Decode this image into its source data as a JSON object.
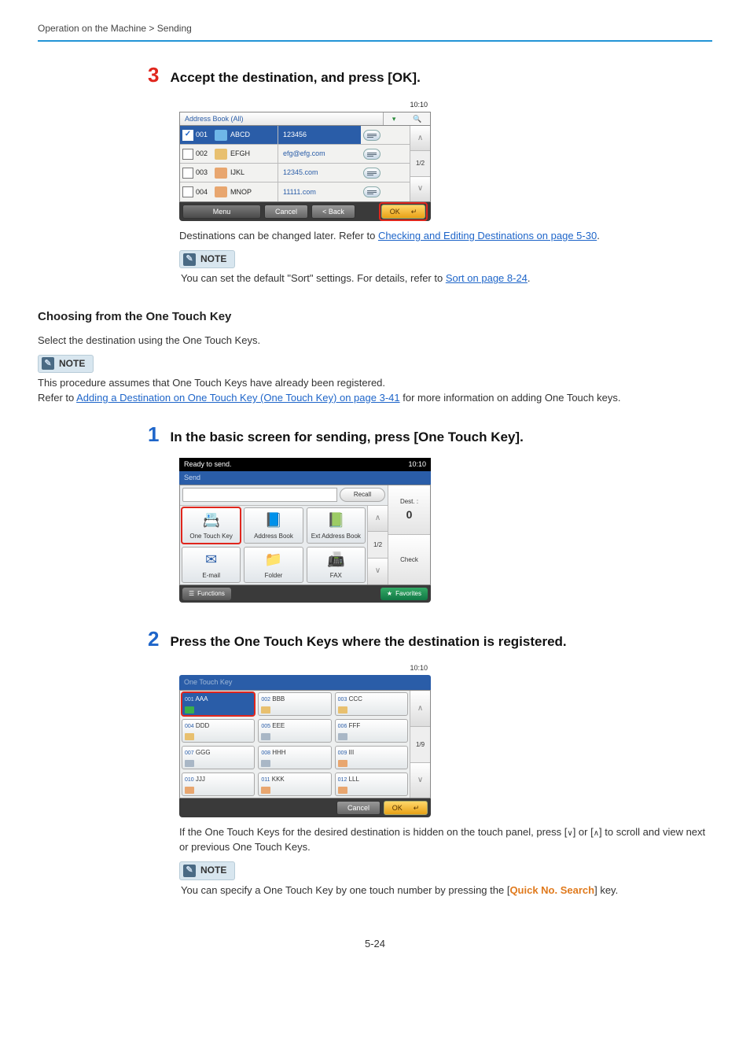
{
  "breadcrumb": "Operation on the Machine > Sending",
  "page_number": "5-24",
  "step3": {
    "num": "3",
    "title": "Accept the destination, and press [OK].",
    "panel": {
      "time": "10:10",
      "header_title": "Address Book (All)",
      "rows": [
        {
          "id": "001",
          "name": "ABCD",
          "value": "123456",
          "selected": true,
          "icon_color": "#6fb7e8"
        },
        {
          "id": "002",
          "name": "EFGH",
          "value": "efg@efg.com",
          "selected": false,
          "icon_color": "#e8c06f"
        },
        {
          "id": "003",
          "name": "IJKL",
          "value": "12345.com",
          "selected": false,
          "icon_color": "#e8a66f"
        },
        {
          "id": "004",
          "name": "MNOP",
          "value": "11111.com",
          "selected": false,
          "icon_color": "#e8a66f"
        }
      ],
      "page_indicator": "1/2",
      "footer": {
        "menu": "Menu",
        "cancel": "Cancel",
        "back": "< Back",
        "ok": "OK"
      }
    },
    "text_after": "Destinations can be changed later. Refer to ",
    "link_after": "Checking and Editing Destinations on page 5-30",
    "text_after_end": ".",
    "note": {
      "label": "NOTE",
      "body_pre": "You can set the default \"Sort\" settings. For details, refer to ",
      "body_link": "Sort on page 8-24",
      "body_post": "."
    }
  },
  "section": {
    "heading": "Choosing from the One Touch Key",
    "intro": "Select the destination using the One Touch Keys.",
    "note": {
      "label": "NOTE",
      "line1": "This procedure assumes that One Touch Keys have already been registered.",
      "line2_pre": "Refer to ",
      "line2_link": "Adding a Destination on One Touch Key (One Touch Key) on page 3-41",
      "line2_post": " for more information on adding One Touch keys."
    }
  },
  "step1": {
    "num": "1",
    "title": "In the basic screen for sending, press [One Touch Key].",
    "panel": {
      "status": "Ready to send.",
      "time": "10:10",
      "bar": "Send",
      "dest_label": "Dest. :",
      "dest_count": "0",
      "check": "Check",
      "recall": "Recall",
      "page_indicator": "1/2",
      "tiles": [
        {
          "label": "One Touch Key",
          "highlight": true,
          "icon": "📇",
          "color": "#2a5da8"
        },
        {
          "label": "Address Book",
          "highlight": false,
          "icon": "📘",
          "color": "#2a5da8"
        },
        {
          "label": "Ext Address Book",
          "highlight": false,
          "icon": "📗",
          "color": "#2a5da8"
        },
        {
          "label": "E-mail",
          "highlight": false,
          "icon": "✉",
          "color": "#2a5da8"
        },
        {
          "label": "Folder",
          "highlight": false,
          "icon": "📁",
          "color": "#caa24a"
        },
        {
          "label": "FAX",
          "highlight": false,
          "icon": "📠",
          "color": "#888"
        }
      ],
      "functions": "Functions",
      "favorites": "Favorites"
    }
  },
  "step2": {
    "num": "2",
    "title": "Press the One Touch Keys where the destination is registered.",
    "panel": {
      "time": "10:10",
      "bar": "One Touch Key",
      "page_indicator": "1/9",
      "cells": [
        {
          "num": "001",
          "name": "AAA",
          "sel": true,
          "icon": "#3aaf4a"
        },
        {
          "num": "002",
          "name": "BBB",
          "sel": false,
          "icon": "#e8c06f"
        },
        {
          "num": "003",
          "name": "CCC",
          "sel": false,
          "icon": "#e8c06f"
        },
        {
          "num": "004",
          "name": "DDD",
          "sel": false,
          "icon": "#e8c06f"
        },
        {
          "num": "005",
          "name": "EEE",
          "sel": false,
          "icon": "#a9b7c6"
        },
        {
          "num": "006",
          "name": "FFF",
          "sel": false,
          "icon": "#a9b7c6"
        },
        {
          "num": "007",
          "name": "GGG",
          "sel": false,
          "icon": "#a9b7c6"
        },
        {
          "num": "008",
          "name": "HHH",
          "sel": false,
          "icon": "#a9b7c6"
        },
        {
          "num": "009",
          "name": "III",
          "sel": false,
          "icon": "#e8a66f"
        },
        {
          "num": "010",
          "name": "JJJ",
          "sel": false,
          "icon": "#e8a66f"
        },
        {
          "num": "011",
          "name": "KKK",
          "sel": false,
          "icon": "#e8a66f"
        },
        {
          "num": "012",
          "name": "LLL",
          "sel": false,
          "icon": "#e8a66f"
        }
      ],
      "footer": {
        "cancel": "Cancel",
        "ok": "OK"
      }
    },
    "text1_a": "If the One Touch Keys for the desired destination is hidden on the touch panel, press [",
    "text1_b": "] or [",
    "text1_c": "] to scroll and view next or previous One Touch Keys.",
    "note": {
      "label": "NOTE",
      "body_pre": "You can specify a One Touch Key by one touch number by pressing the [",
      "body_key": "Quick No. Search",
      "body_post": "] key."
    }
  }
}
